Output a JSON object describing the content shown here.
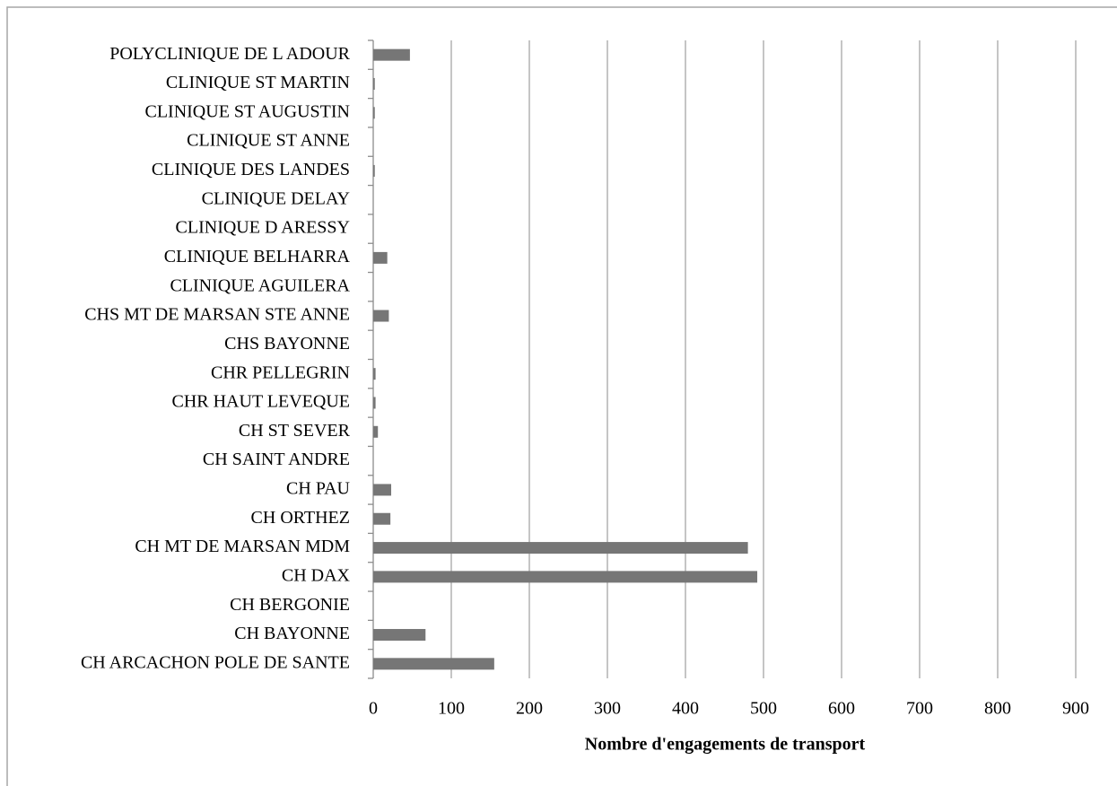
{
  "chart_data": {
    "type": "barh",
    "x_label": "Nombre d'engagements de transport",
    "categories": [
      "CH ARCACHON POLE DE SANTE",
      "CH BAYONNE",
      "CH BERGONIE",
      "CH DAX",
      "CH MT DE MARSAN MDM",
      "CH ORTHEZ",
      "CH PAU",
      "CH SAINT ANDRE",
      "CH ST SEVER",
      "CHR HAUT LEVEQUE",
      "CHR PELLEGRIN",
      "CHS BAYONNE",
      "CHS MT DE MARSAN STE ANNE",
      "CLINIQUE AGUILERA",
      "CLINIQUE BELHARRA",
      "CLINIQUE D ARESSY",
      "CLINIQUE DELAY",
      "CLINIQUE DES LANDES",
      "CLINIQUE ST ANNE",
      "CLINIQUE ST AUGUSTIN",
      "CLINIQUE ST MARTIN",
      "POLYCLINIQUE DE L ADOUR"
    ],
    "values": [
      155,
      67,
      0,
      492,
      480,
      22,
      23,
      0,
      6,
      3,
      3,
      0,
      20,
      0,
      18,
      0,
      0,
      2,
      0,
      2,
      2,
      47
    ],
    "color": "#767676",
    "xlim": [
      0,
      900
    ],
    "xticks": [
      0,
      100,
      200,
      300,
      400,
      500,
      600,
      700,
      800,
      900
    ],
    "grid": true
  }
}
